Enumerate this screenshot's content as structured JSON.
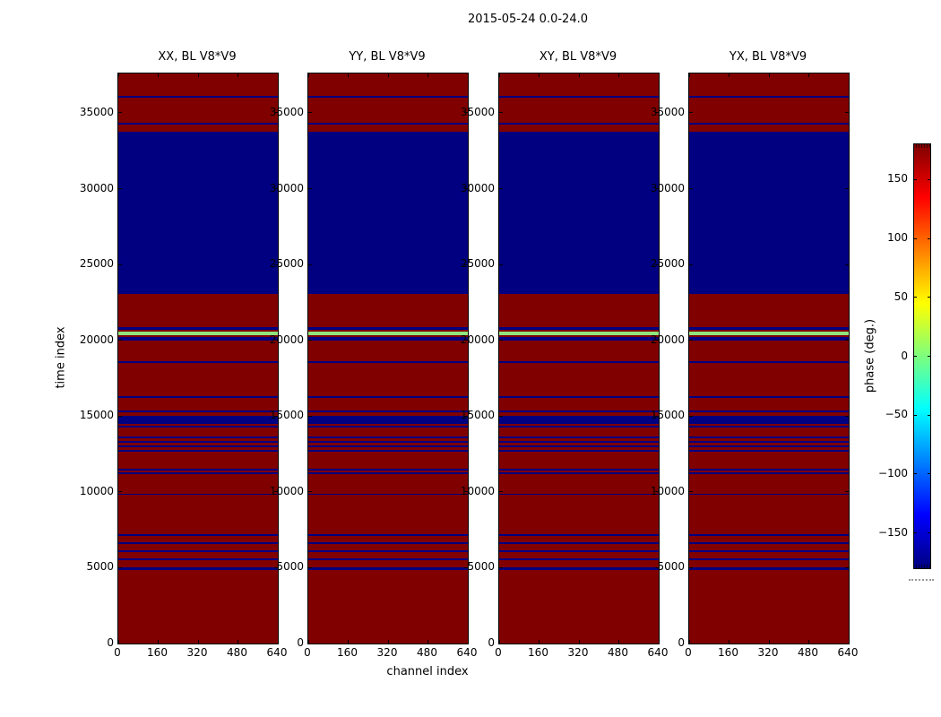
{
  "figure": {
    "title": "2015-05-24 0.0-24.0",
    "xlabel": "channel index",
    "ylabel": "time index",
    "colorbar_label": "phase (deg.)"
  },
  "chart_data": {
    "type": "heatmap",
    "title": "2015-05-24 0.0-24.0",
    "subplot_titles": [
      "XX, BL V8*V9",
      "YY, BL V8*V9",
      "XY, BL V8*V9",
      "YX, BL V8*V9"
    ],
    "xlabel": "channel index",
    "ylabel": "time index",
    "x_axis": {
      "min": 0,
      "max": 640,
      "ticks": [
        0,
        160,
        320,
        480,
        640
      ]
    },
    "y_axis": {
      "min": 0,
      "max": 37600,
      "ticks": [
        0,
        5000,
        10000,
        15000,
        20000,
        25000,
        30000,
        35000
      ]
    },
    "colorbar": {
      "label": "phase (deg.)",
      "colormap": "jet",
      "vmin": -180,
      "vmax": 180,
      "ticks": [
        {
          "value": 150,
          "label": "150"
        },
        {
          "value": 100,
          "label": "100"
        },
        {
          "value": 50,
          "label": "50"
        },
        {
          "value": 0,
          "label": "0"
        },
        {
          "value": -50,
          "label": "−50"
        },
        {
          "value": -100,
          "label": "−100"
        },
        {
          "value": -150,
          "label": "−150"
        }
      ]
    },
    "colors": {
      "background": "#800000",
      "flagged": "#000080",
      "mid_phase_line": "#90e47e"
    },
    "gradient_stops": [
      {
        "pos": 0,
        "color": "#800000"
      },
      {
        "pos": 12.5,
        "color": "#ff0000"
      },
      {
        "pos": 37.5,
        "color": "#ffff00"
      },
      {
        "pos": 50,
        "color": "#7dff7d"
      },
      {
        "pos": 62.5,
        "color": "#00ffff"
      },
      {
        "pos": 87.5,
        "color": "#0000ff"
      },
      {
        "pos": 100,
        "color": "#000080"
      }
    ],
    "dominant_phase_deg": 180,
    "stripes_identical_in_all_panels": true,
    "stripes": [
      {
        "t_from": 35990,
        "t_to": 36130,
        "color": "flagged"
      },
      {
        "t_from": 34230,
        "t_to": 34350,
        "color": "flagged"
      },
      {
        "t_from": 23060,
        "t_to": 33780,
        "color": "flagged"
      },
      {
        "t_from": 20720,
        "t_to": 20840,
        "color": "flagged"
      },
      {
        "t_from": 20330,
        "t_to": 20570,
        "color": "mid_phase_line"
      },
      {
        "t_from": 20000,
        "t_to": 20200,
        "color": "flagged"
      },
      {
        "t_from": 18510,
        "t_to": 18630,
        "color": "flagged"
      },
      {
        "t_from": 16200,
        "t_to": 16320,
        "color": "flagged"
      },
      {
        "t_from": 15270,
        "t_to": 15360,
        "color": "flagged"
      },
      {
        "t_from": 14490,
        "t_to": 15040,
        "color": "flagged"
      },
      {
        "t_from": 14250,
        "t_to": 14370,
        "color": "flagged"
      },
      {
        "t_from": 13560,
        "t_to": 13680,
        "color": "flagged"
      },
      {
        "t_from": 13260,
        "t_to": 13380,
        "color": "flagged"
      },
      {
        "t_from": 12970,
        "t_to": 13090,
        "color": "flagged"
      },
      {
        "t_from": 12670,
        "t_to": 12790,
        "color": "flagged"
      },
      {
        "t_from": 11390,
        "t_to": 11510,
        "color": "flagged"
      },
      {
        "t_from": 11160,
        "t_to": 11280,
        "color": "flagged"
      },
      {
        "t_from": 9790,
        "t_to": 9850,
        "color": "flagged"
      },
      {
        "t_from": 7120,
        "t_to": 7240,
        "color": "flagged"
      },
      {
        "t_from": 6570,
        "t_to": 6690,
        "color": "flagged"
      },
      {
        "t_from": 6020,
        "t_to": 6140,
        "color": "flagged"
      },
      {
        "t_from": 5480,
        "t_to": 5600,
        "color": "flagged"
      },
      {
        "t_from": 4830,
        "t_to": 5010,
        "color": "flagged"
      }
    ]
  }
}
